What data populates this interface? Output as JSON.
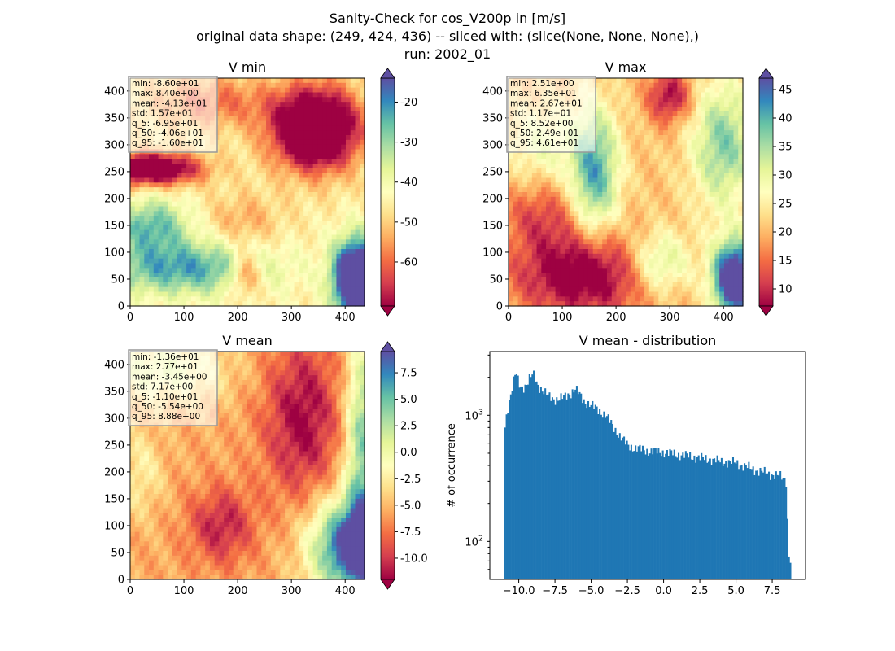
{
  "figure": {
    "title_lines": [
      "Sanity-Check for cos_V200p in [m/s]",
      "original data shape: (249, 424, 436) -- sliced with: (slice(None, None, None),)",
      "run: 2002_01"
    ]
  },
  "colormap": {
    "name": "Spectral",
    "stops": [
      "#9e0142",
      "#d53e4f",
      "#f46d43",
      "#fdae61",
      "#fee08b",
      "#ffffbf",
      "#e6f598",
      "#abdda4",
      "#66c2a5",
      "#3288bd",
      "#5e4fa2"
    ]
  },
  "chart_data": [
    {
      "type": "heatmap",
      "title": "V min",
      "xlim": [
        0,
        436
      ],
      "ylim": [
        0,
        424
      ],
      "xticks": [
        "0",
        "100",
        "200",
        "300",
        "400"
      ],
      "yticks": [
        "0",
        "50",
        "100",
        "150",
        "200",
        "250",
        "300",
        "350",
        "400"
      ],
      "stats": [
        "min: -8.60e+01",
        "max: 8.40e+00",
        "mean: -4.13e+01",
        "std: 1.57e+01",
        "q_5: -6.95e+01",
        "q_50: -4.06e+01",
        "q_95: -1.60e+01"
      ],
      "colorbar": {
        "range": [
          -71,
          -14
        ],
        "ticks": [
          "-20",
          "-30",
          "-40",
          "-50",
          "-60"
        ],
        "tick_values": [
          -20,
          -30,
          -40,
          -50,
          -60
        ]
      },
      "field": {
        "base": 0.45,
        "blobs": [
          {
            "cx": 345,
            "cy": 330,
            "rx": 80,
            "ry": 75,
            "v": -0.85
          },
          {
            "cx": 40,
            "cy": 255,
            "rx": 90,
            "ry": 30,
            "v": -0.7
          },
          {
            "cx": 150,
            "cy": 380,
            "rx": 120,
            "ry": 50,
            "v": -0.25
          },
          {
            "cx": 210,
            "cy": 160,
            "rx": 70,
            "ry": 50,
            "v": -0.15
          },
          {
            "cx": 420,
            "cy": 50,
            "rx": 40,
            "ry": 70,
            "v": 1.0
          },
          {
            "cx": 100,
            "cy": 70,
            "rx": 160,
            "ry": 50,
            "v": 0.4
          },
          {
            "cx": 40,
            "cy": 150,
            "rx": 70,
            "ry": 50,
            "v": 0.35
          },
          {
            "cx": 215,
            "cy": 60,
            "rx": 30,
            "ry": 40,
            "v": -0.35
          }
        ]
      }
    },
    {
      "type": "heatmap",
      "title": "V max",
      "xlim": [
        0,
        436
      ],
      "ylim": [
        0,
        424
      ],
      "xticks": [
        "0",
        "100",
        "200",
        "300",
        "400"
      ],
      "yticks": [
        "0",
        "50",
        "100",
        "150",
        "200",
        "250",
        "300",
        "350",
        "400"
      ],
      "stats": [
        "min: 2.51e+00",
        "max: 6.35e+01",
        "mean: 2.67e+01",
        "std: 1.17e+01",
        "q_5: 8.52e+00",
        "q_50: 2.49e+01",
        "q_95: 4.61e+01"
      ],
      "colorbar": {
        "range": [
          7,
          47
        ],
        "ticks": [
          "45",
          "40",
          "35",
          "30",
          "25",
          "20",
          "15",
          "10"
        ],
        "tick_values": [
          45,
          40,
          35,
          30,
          25,
          20,
          15,
          10
        ]
      },
      "field": {
        "base": 0.35,
        "blobs": [
          {
            "cx": 140,
            "cy": 60,
            "rx": 130,
            "ry": 80,
            "v": -0.45
          },
          {
            "cx": 300,
            "cy": 390,
            "rx": 40,
            "ry": 50,
            "v": -0.35
          },
          {
            "cx": 60,
            "cy": 170,
            "rx": 70,
            "ry": 60,
            "v": -0.2
          },
          {
            "cx": 160,
            "cy": 250,
            "rx": 45,
            "ry": 120,
            "v": 0.5
          },
          {
            "cx": 400,
            "cy": 300,
            "rx": 60,
            "ry": 120,
            "v": 0.4
          },
          {
            "cx": 420,
            "cy": 50,
            "rx": 40,
            "ry": 70,
            "v": 0.9
          },
          {
            "cx": 280,
            "cy": 80,
            "rx": 60,
            "ry": 60,
            "v": 0.35
          },
          {
            "cx": 60,
            "cy": 300,
            "rx": 60,
            "ry": 70,
            "v": 0.2
          }
        ]
      }
    },
    {
      "type": "heatmap",
      "title": "V mean",
      "xlim": [
        0,
        436
      ],
      "ylim": [
        0,
        424
      ],
      "xticks": [
        "0",
        "100",
        "200",
        "300",
        "400"
      ],
      "yticks": [
        "0",
        "50",
        "100",
        "150",
        "200",
        "250",
        "300",
        "350",
        "400"
      ],
      "stats": [
        "min: -1.36e+01",
        "max: 2.77e+01",
        "mean: -3.45e+00",
        "std: 7.17e+00",
        "q_5: -1.10e+01",
        "q_50: -5.54e+00",
        "q_95: 8.88e+00"
      ],
      "colorbar": {
        "range": [
          -12,
          9.5
        ],
        "ticks": [
          "7.5",
          "5.0",
          "2.5",
          "0.0",
          "-2.5",
          "-5.0",
          "-7.5",
          "-10.0"
        ],
        "tick_values": [
          7.5,
          5.0,
          2.5,
          0.0,
          -2.5,
          -5.0,
          -7.5,
          -10.0
        ]
      },
      "field": {
        "base": 0.3,
        "blobs": [
          {
            "cx": 320,
            "cy": 300,
            "rx": 70,
            "ry": 150,
            "v": -0.3
          },
          {
            "cx": 170,
            "cy": 100,
            "rx": 60,
            "ry": 70,
            "v": -0.25
          },
          {
            "cx": 420,
            "cy": 60,
            "rx": 80,
            "ry": 90,
            "v": 0.8
          },
          {
            "cx": 430,
            "cy": 260,
            "rx": 30,
            "ry": 200,
            "v": 0.45
          },
          {
            "cx": 60,
            "cy": 390,
            "rx": 120,
            "ry": 60,
            "v": 0.25
          },
          {
            "cx": 20,
            "cy": 200,
            "rx": 40,
            "ry": 80,
            "v": 0.15
          }
        ]
      }
    },
    {
      "type": "bar",
      "title": "V mean - distribution",
      "ylabel": "# of occurrence",
      "yscale": "log",
      "xlim": [
        -12,
        9.8
      ],
      "ylim": [
        50,
        3200
      ],
      "xticks": [
        "−10.0",
        "−7.5",
        "−5.0",
        "−2.5",
        "0.0",
        "2.5",
        "5.0",
        "7.5"
      ],
      "xtick_values": [
        -10.0,
        -7.5,
        -5.0,
        -2.5,
        0.0,
        2.5,
        5.0,
        7.5
      ],
      "yticks": [
        {
          "label": "10",
          "exp": "3",
          "value": 1000
        },
        {
          "label": "10",
          "exp": "2",
          "value": 100
        }
      ],
      "bin_range": [
        -11.0,
        8.8
      ],
      "profile": [
        [
          -11.0,
          720
        ],
        [
          -10.8,
          1100
        ],
        [
          -10.6,
          1400
        ],
        [
          -10.4,
          1800
        ],
        [
          -10.2,
          2200
        ],
        [
          -10.0,
          1750
        ],
        [
          -9.8,
          1650
        ],
        [
          -9.5,
          1750
        ],
        [
          -9.2,
          2000
        ],
        [
          -9.0,
          2100
        ],
        [
          -8.7,
          1750
        ],
        [
          -8.3,
          1550
        ],
        [
          -8.0,
          1420
        ],
        [
          -7.6,
          1350
        ],
        [
          -7.2,
          1350
        ],
        [
          -6.9,
          1380
        ],
        [
          -6.5,
          1480
        ],
        [
          -6.1,
          1620
        ],
        [
          -5.8,
          1450
        ],
        [
          -5.5,
          1300
        ],
        [
          -5.0,
          1200
        ],
        [
          -4.5,
          1100
        ],
        [
          -4.0,
          1000
        ],
        [
          -3.5,
          820
        ],
        [
          -3.0,
          680
        ],
        [
          -2.5,
          580
        ],
        [
          -2.0,
          550
        ],
        [
          -1.0,
          520
        ],
        [
          0.0,
          510
        ],
        [
          1.0,
          490
        ],
        [
          2.0,
          470
        ],
        [
          3.0,
          450
        ],
        [
          4.0,
          430
        ],
        [
          5.0,
          420
        ],
        [
          6.0,
          380
        ],
        [
          7.0,
          350
        ],
        [
          8.0,
          330
        ],
        [
          8.5,
          300
        ],
        [
          8.6,
          80
        ],
        [
          8.8,
          70
        ]
      ]
    }
  ]
}
